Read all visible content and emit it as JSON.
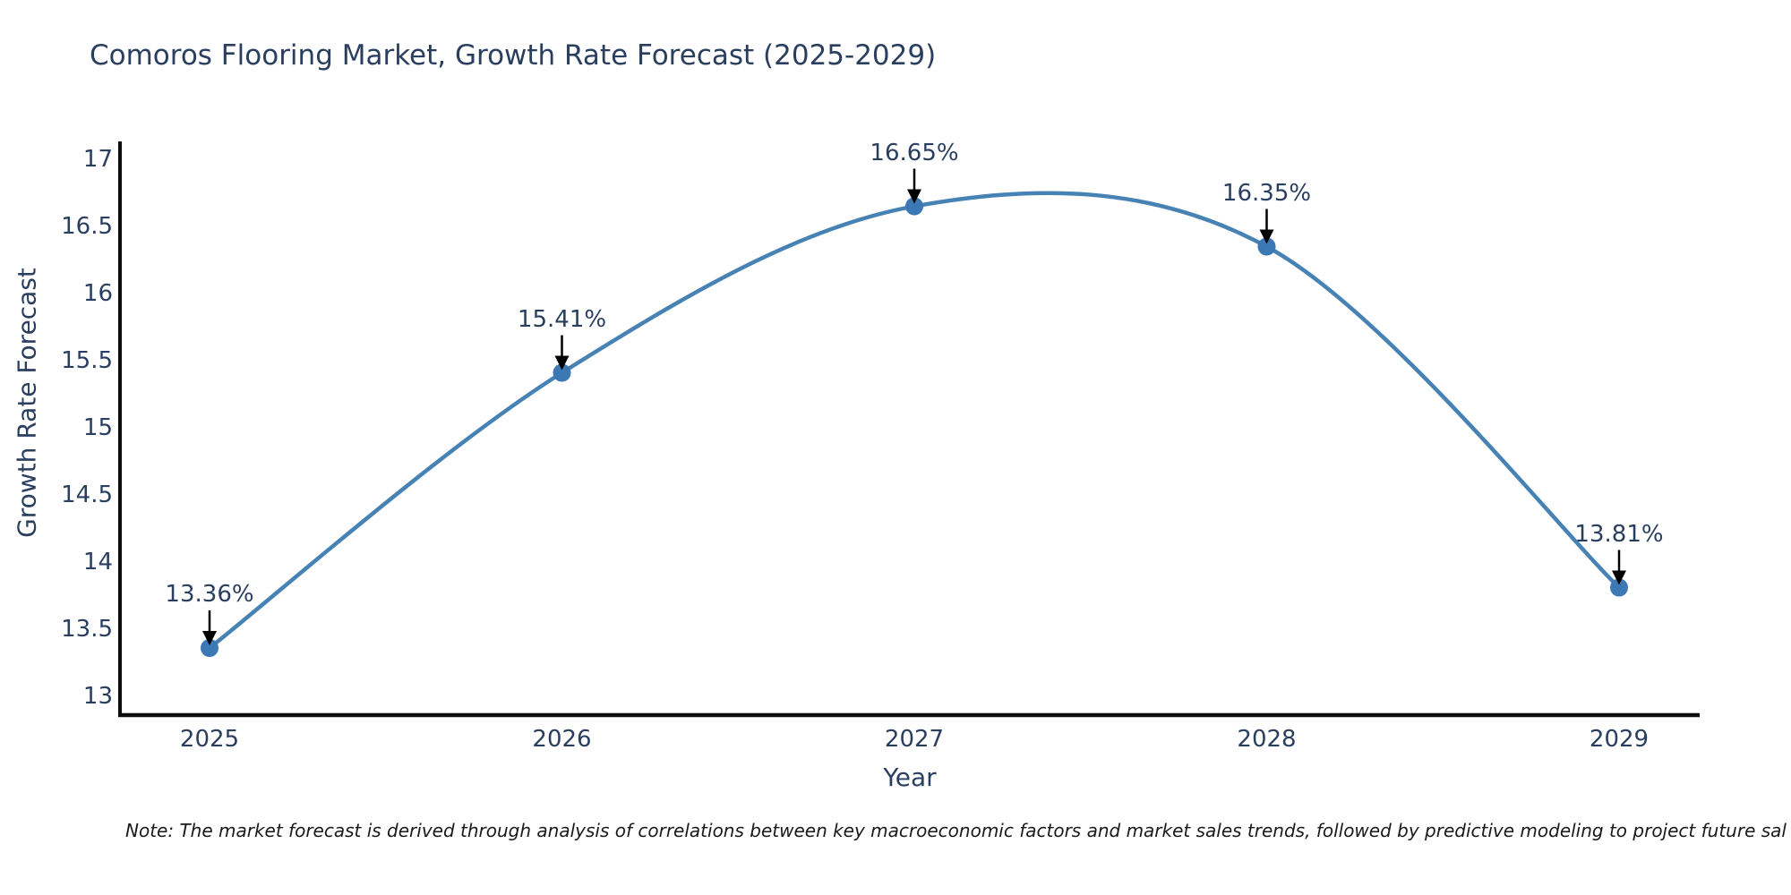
{
  "page": {
    "background": "#ffffff"
  },
  "chart_data": {
    "type": "line",
    "line_shape": "spline",
    "title": "Comoros Flooring Market, Growth Rate Forecast (2025-2029)",
    "xlabel": "Year",
    "ylabel": "Growth Rate Forecast",
    "x": [
      2025,
      2026,
      2027,
      2028,
      2029
    ],
    "y": [
      13.36,
      15.41,
      16.65,
      16.35,
      13.81
    ],
    "point_labels": [
      "13.36%",
      "15.41%",
      "16.65%",
      "16.35%",
      "13.81%"
    ],
    "xticks": [
      "2025",
      "2026",
      "2027",
      "2028",
      "2029"
    ],
    "ytick_values": [
      13,
      13.5,
      14,
      14.5,
      15,
      15.5,
      16,
      16.5,
      17
    ],
    "ytick_labels": [
      "13",
      "13.5",
      "14",
      "14.5",
      "15",
      "15.5",
      "16",
      "16.5",
      "17"
    ],
    "ylim": [
      13,
      17
    ],
    "grid": false,
    "legend": null,
    "markers": true,
    "annotations_have_arrows": true,
    "colors": {
      "line": "#4682b4",
      "marker": "#3c78b4",
      "axis": "#0d0d0d",
      "text": "#2a3f5f",
      "arrow": "#000000",
      "note": "#1a1a1a",
      "background": "#ffffff"
    }
  },
  "footnote": {
    "text": "Note: The market forecast is derived through analysis of correlations between key macroeconomic factors and market sales trends, followed by predictive modeling to project future sal"
  }
}
